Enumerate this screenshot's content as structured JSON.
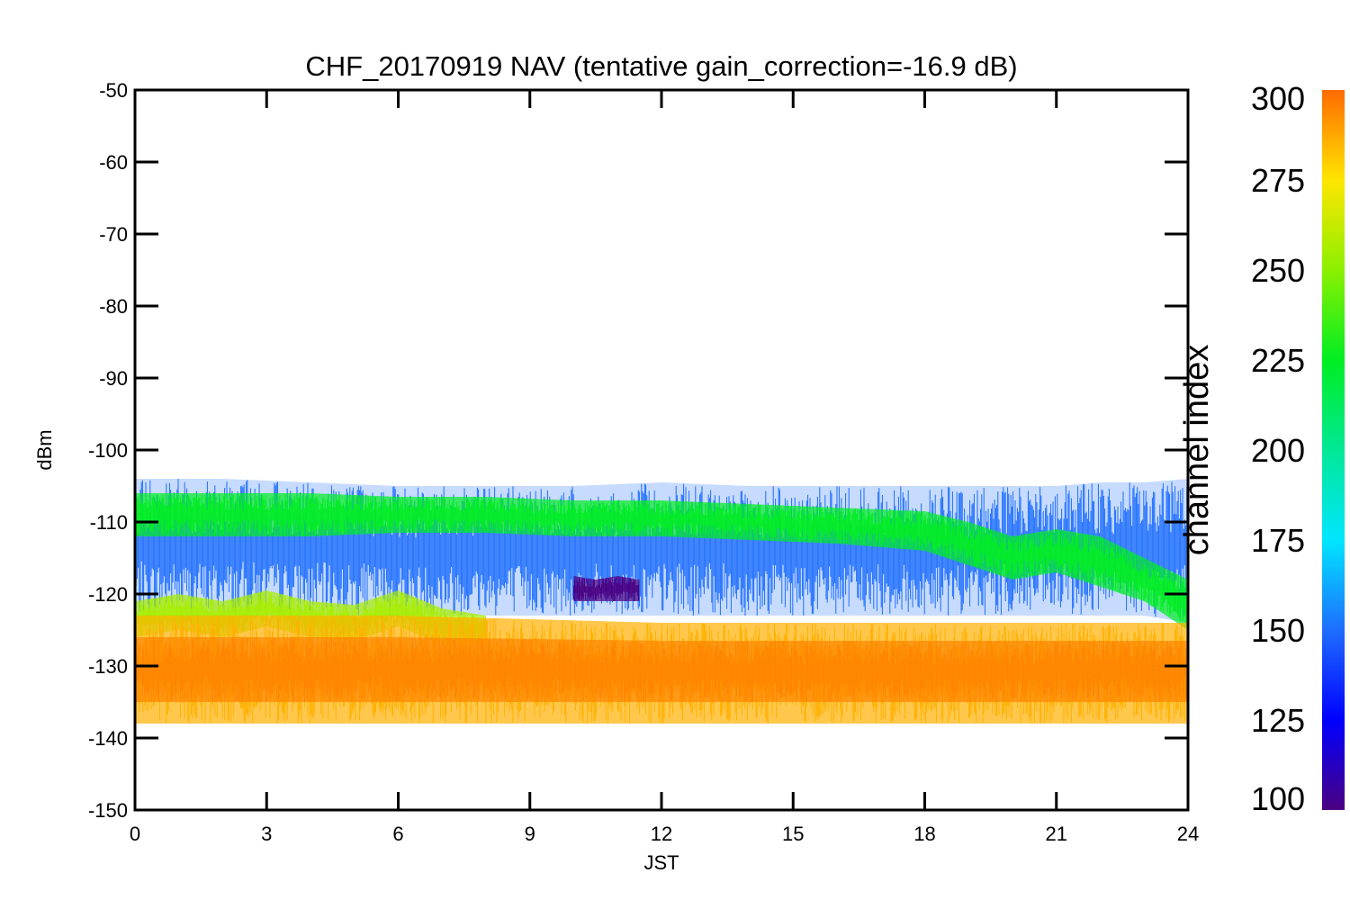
{
  "chart_data": {
    "type": "line",
    "title": "CHF_20170919 NAV (tentative gain_correction=-16.9 dB)",
    "xlabel": "JST",
    "ylabel": "dBm",
    "xlim": [
      0,
      24
    ],
    "ylim": [
      -150,
      -50
    ],
    "xticks": [
      0,
      3,
      6,
      9,
      12,
      15,
      18,
      21,
      24
    ],
    "xtick_labels": [
      "0",
      "3",
      "6",
      "9",
      "12",
      "15",
      "18",
      "21",
      "24"
    ],
    "yticks": [
      -50,
      -60,
      -70,
      -80,
      -90,
      -100,
      -110,
      -120,
      -130,
      -140,
      -150
    ],
    "ytick_labels": [
      "-50",
      "-60",
      "-70",
      "-80",
      "-90",
      "-100",
      "-110",
      "-120",
      "-130",
      "-140",
      "-150"
    ],
    "grid": false,
    "colorbar": {
      "label": "channel index",
      "range": [
        100,
        300
      ],
      "ticks": [
        100,
        125,
        150,
        175,
        200,
        225,
        250,
        275,
        300
      ],
      "tick_labels": [
        "100",
        "125",
        "150",
        "175",
        "200",
        "225",
        "250",
        "275",
        "300"
      ],
      "colormap_stops": [
        {
          "value": 100,
          "color": "#4b0082"
        },
        {
          "value": 125,
          "color": "#0000ff"
        },
        {
          "value": 150,
          "color": "#1e6eff"
        },
        {
          "value": 175,
          "color": "#00e6ff"
        },
        {
          "value": 200,
          "color": "#00e896"
        },
        {
          "value": 225,
          "color": "#00ee22"
        },
        {
          "value": 250,
          "color": "#8cf000"
        },
        {
          "value": 275,
          "color": "#ffe600"
        },
        {
          "value": 300,
          "color": "#ff6a00"
        }
      ]
    },
    "series": [
      {
        "channel_index": 150,
        "color": "#1e6eff",
        "x": [
          0,
          2,
          4,
          6,
          8,
          10,
          12,
          14,
          16,
          18,
          19,
          20,
          21,
          22,
          23,
          24
        ],
        "upper": [
          -104,
          -104,
          -104.5,
          -105,
          -105,
          -105,
          -104.5,
          -105,
          -105,
          -105,
          -105,
          -105,
          -105,
          -104.5,
          -104.5,
          -104
        ],
        "lower": [
          -123,
          -123,
          -123,
          -123,
          -123,
          -123,
          -123,
          -123,
          -123,
          -123,
          -123,
          -123,
          -123,
          -123,
          -123,
          -124
        ]
      },
      {
        "channel_index": 225,
        "color": "#00ee22",
        "x": [
          0,
          2,
          4,
          6,
          8,
          10,
          12,
          14,
          16,
          18,
          19,
          20,
          21,
          22,
          23,
          24
        ],
        "upper": [
          -106,
          -106,
          -106,
          -106.5,
          -106.5,
          -107,
          -107,
          -107.5,
          -108,
          -108.5,
          -110,
          -112,
          -111,
          -112,
          -115,
          -118
        ],
        "lower": [
          -112,
          -112,
          -112,
          -111.5,
          -111.5,
          -112,
          -112,
          -112.5,
          -113,
          -114,
          -116,
          -118,
          -117,
          -119,
          -121,
          -125
        ]
      },
      {
        "channel_index": 255,
        "color": "#a8ee00",
        "x": [
          0,
          1,
          2,
          3,
          4,
          5,
          6,
          7,
          8
        ],
        "upper": [
          -121,
          -120,
          -121,
          -119.5,
          -121,
          -121.5,
          -119.5,
          -122,
          -123
        ],
        "lower": [
          -126,
          -125,
          -126,
          -124.5,
          -126,
          -126.5,
          -124.5,
          -127,
          -127
        ]
      },
      {
        "channel_index": 285,
        "color": "#ffb000",
        "x": [
          0,
          6,
          12,
          18,
          24
        ],
        "upper": [
          -123,
          -123,
          -124,
          -124,
          -124
        ],
        "lower": [
          -138,
          -138,
          -138,
          -138,
          -138
        ]
      },
      {
        "channel_index": 300,
        "color": "#ff8400",
        "x": [
          0,
          6,
          12,
          18,
          24
        ],
        "upper": [
          -126,
          -126,
          -126.5,
          -126.5,
          -126.5
        ],
        "lower": [
          -135,
          -135,
          -135,
          -135,
          -135
        ]
      },
      {
        "channel_index": 105,
        "color": "#4b0082",
        "x": [
          10,
          10.5,
          11,
          11.5
        ],
        "upper": [
          -117.5,
          -118,
          -117.5,
          -118
        ],
        "lower": [
          -121,
          -121,
          -121,
          -121
        ]
      }
    ]
  }
}
